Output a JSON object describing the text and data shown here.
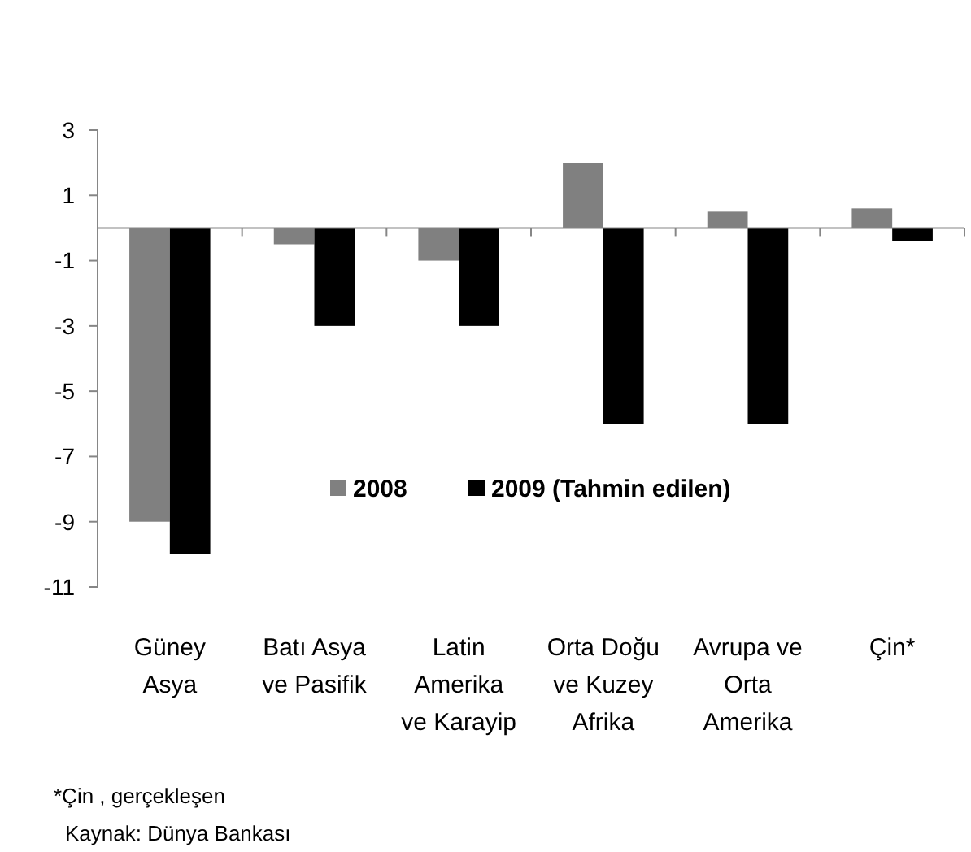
{
  "chart_data": {
    "type": "bar",
    "categories": [
      "Güney Asya",
      "Batı Asya ve Pasifik",
      "Latin Amerika ve Karayip",
      "Orta Doğu ve Kuzey Afrika",
      "Avrupa ve Orta Amerika",
      "Çin*"
    ],
    "series": [
      {
        "name": "2008",
        "color": "#808080",
        "values": [
          -9,
          -0.5,
          -1,
          2,
          0.5,
          0.6
        ]
      },
      {
        "name": "2009 (Tahmin edilen)",
        "color": "#000000",
        "values": [
          -10,
          -3,
          -3,
          -6,
          -6,
          -0.4
        ]
      }
    ],
    "ylim": [
      -11,
      3
    ],
    "yticks": [
      -11,
      -9,
      -7,
      -5,
      -3,
      -1,
      1,
      3
    ],
    "grid": false,
    "legend": "bottom",
    "annotations": [
      "*Çin , gerçekleşen",
      "Kaynak: Dünya Bankası"
    ]
  }
}
